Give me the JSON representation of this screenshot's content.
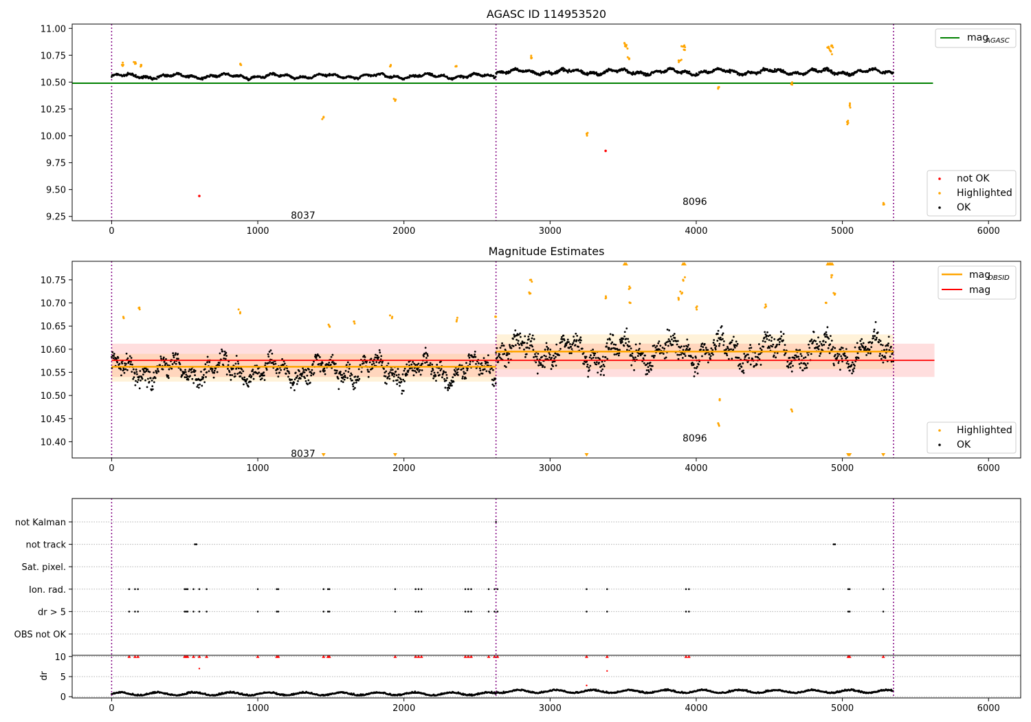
{
  "chart_data": [
    {
      "type": "scatter",
      "title": "AGASC ID 114953520",
      "xlim": [
        -270,
        6220
      ],
      "ylim": [
        9.21,
        11.04
      ],
      "xticks": [
        0,
        1000,
        2000,
        3000,
        4000,
        5000,
        6000
      ],
      "yticks": [
        "11.00",
        "10.75",
        "10.50",
        "10.25",
        "10.00",
        "9.75",
        "9.50",
        "9.25"
      ],
      "obsid_boundaries": [
        0,
        2630,
        5350
      ],
      "obsid_labels": [
        {
          "text": "8037",
          "x": 1310,
          "y": 9.26
        },
        {
          "text": "8096",
          "x": 3990,
          "y": 9.39
        }
      ],
      "mag_agasc": {
        "value": 10.49,
        "x_start": -270,
        "x_end": 5620,
        "color": "#008000"
      },
      "ok_segments": [
        {
          "x0": 0,
          "x1": 2630,
          "level": 10.555,
          "amp": 0.025
        },
        {
          "x0": 2630,
          "x1": 5350,
          "level": 10.595,
          "amp": 0.03
        }
      ],
      "highlighted_points": [
        {
          "x": 1450,
          "y": 10.17
        },
        {
          "x": 1940,
          "y": 10.33
        },
        {
          "x": 3250,
          "y": 10.02
        },
        {
          "x": 4150,
          "y": 10.44
        },
        {
          "x": 4650,
          "y": 10.48
        },
        {
          "x": 5040,
          "y": 10.12
        },
        {
          "x": 5050,
          "y": 10.28
        },
        {
          "x": 5280,
          "y": 9.36
        },
        {
          "x": 80,
          "y": 10.66
        },
        {
          "x": 160,
          "y": 10.67
        },
        {
          "x": 200,
          "y": 10.66
        },
        {
          "x": 880,
          "y": 10.67
        },
        {
          "x": 1910,
          "y": 10.66
        },
        {
          "x": 2360,
          "y": 10.65
        },
        {
          "x": 2870,
          "y": 10.73
        },
        {
          "x": 3510,
          "y": 10.86
        },
        {
          "x": 3520,
          "y": 10.83
        },
        {
          "x": 3540,
          "y": 10.72
        },
        {
          "x": 3890,
          "y": 10.7
        },
        {
          "x": 3910,
          "y": 10.83
        },
        {
          "x": 3920,
          "y": 10.8
        },
        {
          "x": 4900,
          "y": 10.82
        },
        {
          "x": 4920,
          "y": 10.79
        },
        {
          "x": 4930,
          "y": 10.84
        }
      ],
      "not_ok_points": [
        {
          "x": 600,
          "y": 9.44
        },
        {
          "x": 3380,
          "y": 9.86
        }
      ],
      "legend_top": {
        "label": "mag",
        "sub": "AGASC"
      },
      "legend_bottom": [
        "not OK",
        "Highlighted",
        "OK"
      ]
    },
    {
      "type": "scatter",
      "title": "Magnitude Estimates",
      "xlim": [
        -270,
        6220
      ],
      "ylim": [
        10.365,
        10.79
      ],
      "xticks": [
        0,
        1000,
        2000,
        3000,
        4000,
        5000,
        6000
      ],
      "yticks": [
        "10.75",
        "10.70",
        "10.65",
        "10.60",
        "10.55",
        "10.50",
        "10.45",
        "10.40"
      ],
      "obsid_boundaries": [
        0,
        2630,
        5350
      ],
      "obsid_labels": [
        {
          "text": "8037",
          "x": 1310,
          "y": 10.375
        },
        {
          "text": "8096",
          "x": 3990,
          "y": 10.408
        }
      ],
      "mag": {
        "value": 10.576,
        "band": [
          10.54,
          10.612
        ],
        "x_start": 0,
        "x_end": 5630,
        "color": "#ff0000"
      },
      "mag_obsid": [
        {
          "x0": 0,
          "x1": 2630,
          "value": 10.562,
          "band": [
            10.53,
            10.59
          ]
        },
        {
          "x0": 2630,
          "x1": 5350,
          "value": 10.595,
          "band": [
            10.557,
            10.632
          ]
        }
      ],
      "ok_segments": [
        {
          "x0": 0,
          "x1": 2630,
          "level": 10.555,
          "amp": 0.03
        },
        {
          "x0": 2630,
          "x1": 5350,
          "level": 10.595,
          "amp": 0.035
        }
      ],
      "highlighted_points": [
        {
          "x": 80,
          "y": 10.67
        },
        {
          "x": 190,
          "y": 10.69
        },
        {
          "x": 880,
          "y": 10.68
        },
        {
          "x": 1490,
          "y": 10.65
        },
        {
          "x": 1660,
          "y": 10.66
        },
        {
          "x": 1920,
          "y": 10.67
        },
        {
          "x": 2360,
          "y": 10.66
        },
        {
          "x": 2630,
          "y": 10.67
        },
        {
          "x": 2870,
          "y": 10.75
        },
        {
          "x": 2860,
          "y": 10.72
        },
        {
          "x": 3380,
          "y": 10.71
        },
        {
          "x": 3540,
          "y": 10.73
        },
        {
          "x": 3550,
          "y": 10.7
        },
        {
          "x": 3880,
          "y": 10.71
        },
        {
          "x": 3900,
          "y": 10.72
        },
        {
          "x": 3910,
          "y": 10.75
        },
        {
          "x": 4000,
          "y": 10.69
        },
        {
          "x": 4150,
          "y": 10.44
        },
        {
          "x": 4160,
          "y": 10.49
        },
        {
          "x": 4470,
          "y": 10.69
        },
        {
          "x": 4650,
          "y": 10.47
        },
        {
          "x": 4890,
          "y": 10.7
        },
        {
          "x": 4930,
          "y": 10.76
        },
        {
          "x": 4950,
          "y": 10.72
        }
      ],
      "clipped_top_x": [
        3510,
        3520,
        3910,
        3920,
        4900,
        4910,
        4920,
        4930
      ],
      "clipped_bottom_x": [
        1450,
        1940,
        3250,
        5040,
        5050,
        5280
      ],
      "legend_top": [
        {
          "label": "mag",
          "sub": "OBSID",
          "color": "#ffa500"
        },
        {
          "label": "mag",
          "sub": "",
          "color": "#ff0000"
        }
      ],
      "legend_bottom": [
        "Highlighted",
        "OK"
      ]
    },
    {
      "type": "scatter",
      "title": "",
      "xlim": [
        -270,
        6220
      ],
      "xticks": [
        0,
        1000,
        2000,
        3000,
        4000,
        5000,
        6000
      ],
      "obsid_boundaries": [
        0,
        2630,
        5350
      ],
      "flag_rows": [
        "not Kalman",
        "not track",
        "Sat. pixel.",
        "Ion. rad.",
        "dr > 5",
        "OBS not OK"
      ],
      "flags": {
        "not Kalman": [
          2630
        ],
        "not track": [
          570,
          580,
          4940,
          4950
        ],
        "Sat. pixel.": [],
        "Ion. rad.": [
          120,
          160,
          180,
          500,
          510,
          520,
          560,
          600,
          650,
          1000,
          1130,
          1140,
          1450,
          1480,
          1490,
          1940,
          2080,
          2100,
          2120,
          2420,
          2440,
          2460,
          2580,
          2620,
          2640,
          3250,
          3390,
          3930,
          3950,
          5040,
          5050,
          5280
        ],
        "dr > 5": [
          120,
          160,
          180,
          500,
          510,
          520,
          560,
          600,
          650,
          1000,
          1130,
          1140,
          1450,
          1480,
          1490,
          1940,
          2080,
          2100,
          2120,
          2420,
          2440,
          2460,
          2580,
          2620,
          2640,
          3250,
          3390,
          3930,
          3950,
          5040,
          5050,
          5280
        ],
        "OBS not OK": []
      },
      "dr": {
        "ylabel": "dr",
        "ylim": [
          -0.3,
          10.3
        ],
        "yticks": [
          10,
          5,
          0
        ],
        "clip_value": 10,
        "level_segments": [
          {
            "x0": 0,
            "x1": 2630,
            "level": 0.6
          },
          {
            "x0": 2630,
            "x1": 5350,
            "level": 1.2
          }
        ],
        "outlier_points": [
          {
            "x": 600,
            "y": 7.0
          },
          {
            "x": 3390,
            "y": 6.4
          },
          {
            "x": 3250,
            "y": 2.8
          }
        ]
      }
    }
  ]
}
